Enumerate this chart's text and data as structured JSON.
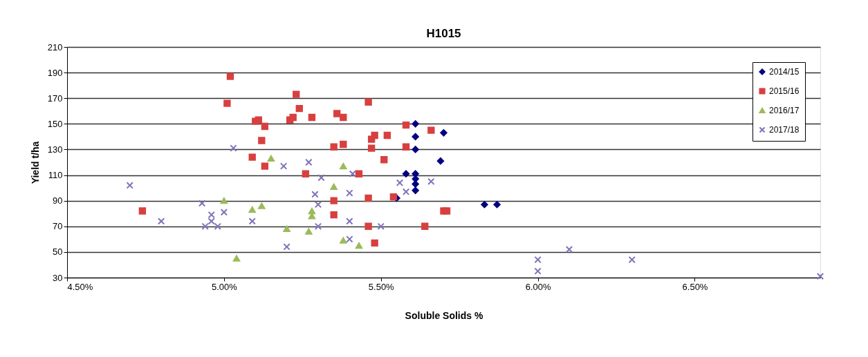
{
  "chart_data": {
    "type": "scatter",
    "title": "H1015",
    "xlabel": "Soluble Solids %",
    "ylabel": "Yield  t/ha",
    "xlim": [
      4.5,
      6.9
    ],
    "xticks": [
      {
        "value": 4.5,
        "label": "4.50%"
      },
      {
        "value": 5.0,
        "label": "5.00%"
      },
      {
        "value": 5.5,
        "label": "5.50%"
      },
      {
        "value": 6.0,
        "label": "6.00%"
      },
      {
        "value": 6.5,
        "label": "6.50%"
      }
    ],
    "ylim": [
      30,
      210
    ],
    "yticks": [
      30,
      50,
      70,
      90,
      110,
      130,
      150,
      170,
      190,
      210
    ],
    "grid": "y",
    "legend": "top right",
    "series": [
      {
        "name": "2014/15",
        "color": "#000080",
        "marker": "diamond",
        "x": [
          5.61,
          5.61,
          5.61,
          5.7,
          5.69,
          5.58,
          5.61,
          5.61,
          5.61,
          5.61,
          5.55,
          5.83,
          5.87
        ],
        "values": [
          150,
          140,
          130,
          143,
          121,
          111,
          111,
          107,
          103,
          98,
          92,
          87,
          87
        ]
      },
      {
        "name": "2015/16",
        "color": "#d84040",
        "marker": "square",
        "x": [
          5.02,
          5.01,
          5.1,
          5.11,
          5.13,
          5.12,
          5.09,
          5.13,
          4.74,
          5.23,
          5.24,
          5.21,
          5.22,
          5.28,
          5.36,
          5.38,
          5.46,
          5.26,
          5.35,
          5.38,
          5.47,
          5.48,
          5.52,
          5.58,
          5.66,
          5.58,
          5.47,
          5.51,
          5.43,
          5.35,
          5.35,
          5.46,
          5.46,
          5.48,
          5.54,
          5.7,
          5.71,
          5.64
        ],
        "values": [
          187,
          166,
          152,
          153,
          148,
          137,
          124,
          117,
          82,
          173,
          162,
          153,
          155,
          155,
          158,
          155,
          167,
          111,
          132,
          134,
          138,
          141,
          141,
          149,
          145,
          132,
          131,
          122,
          111,
          90,
          79,
          92,
          70,
          57,
          93,
          82,
          82,
          70
        ]
      },
      {
        "name": "2016/17",
        "color": "#9bbb59",
        "marker": "triangle",
        "x": [
          5.0,
          5.09,
          5.12,
          5.04,
          5.15,
          5.2,
          5.27,
          5.28,
          5.28,
          5.38,
          5.35,
          5.38,
          5.43
        ],
        "values": [
          90,
          83,
          86,
          45,
          123,
          68,
          66,
          82,
          78,
          117,
          101,
          59,
          55
        ]
      },
      {
        "name": "2017/18",
        "color": "#7f72b8",
        "marker": "cross",
        "x": [
          5.03,
          4.7,
          4.8,
          4.93,
          4.96,
          4.94,
          4.98,
          4.96,
          5.0,
          5.09,
          5.19,
          5.27,
          5.31,
          5.29,
          5.3,
          5.4,
          5.2,
          5.3,
          5.4,
          5.4,
          5.5,
          5.41,
          5.56,
          5.58,
          5.66,
          6.0,
          6.0,
          6.1,
          6.3,
          6.9
        ],
        "values": [
          131,
          102,
          74,
          88,
          79,
          70,
          70,
          74,
          81,
          74,
          117,
          120,
          108,
          95,
          87,
          96,
          54,
          70,
          74,
          60,
          70,
          111,
          104,
          97,
          105,
          44,
          35,
          52,
          44,
          31
        ]
      }
    ]
  }
}
